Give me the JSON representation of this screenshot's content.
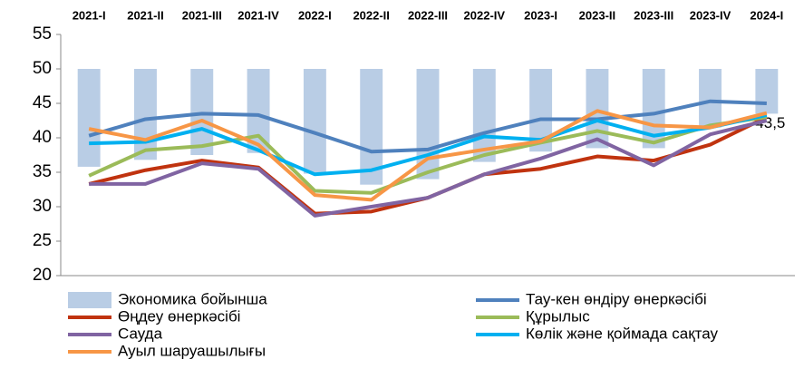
{
  "chart_data": {
    "type": "bar-line",
    "categories": [
      "2021-I",
      "2021-II",
      "2021-III",
      "2021-IV",
      "2022-I",
      "2022-II",
      "2022-III",
      "2022-IV",
      "2023-I",
      "2023-II",
      "2023-III",
      "2023-IV",
      "2024-I"
    ],
    "bar_base": 50,
    "series": [
      {
        "name": "Экономика бойынша",
        "kind": "bar",
        "color": "#b9cde5",
        "values": [
          35.8,
          36.8,
          37.5,
          37.8,
          34.8,
          33.2,
          34,
          36.5,
          38,
          38.5,
          38.5,
          41.5,
          43.5
        ],
        "value_labels": [
          null,
          null,
          null,
          null,
          null,
          null,
          null,
          null,
          null,
          null,
          null,
          null,
          "43,5"
        ]
      },
      {
        "name": "Тау-кен өндіру өнеркәсібі",
        "kind": "line",
        "color": "#4f81bd",
        "values": [
          40.3,
          42.7,
          43.5,
          43.3,
          40.7,
          38,
          38.3,
          40.7,
          42.7,
          42.7,
          43.5,
          45.3,
          45
        ]
      },
      {
        "name": "Өңдеу өнеркәсібі",
        "kind": "line",
        "color": "#c0330f",
        "values": [
          33.3,
          35.3,
          36.7,
          35.7,
          29,
          29.3,
          31.3,
          34.7,
          35.5,
          37.3,
          36.7,
          39,
          43
        ]
      },
      {
        "name": "Құрылыс",
        "kind": "line",
        "color": "#9bbb59",
        "values": [
          34.5,
          38.2,
          38.8,
          40.3,
          32.3,
          32,
          35,
          37.5,
          39.3,
          41,
          39.3,
          41.8,
          43
        ]
      },
      {
        "name": "Сауда",
        "kind": "line",
        "color": "#8064a2",
        "values": [
          33.3,
          33.3,
          36.3,
          35.5,
          28.7,
          30,
          31.3,
          34.7,
          37,
          39.8,
          36,
          40.5,
          42.5
        ]
      },
      {
        "name": "Көлік және қоймада сақтау",
        "kind": "line",
        "color": "#00b0f0",
        "values": [
          39.2,
          39.4,
          41.3,
          38.2,
          34.7,
          35.3,
          37.5,
          40.2,
          39.7,
          42.5,
          40.3,
          41.5,
          43.3
        ]
      },
      {
        "name": "Ауыл шаруашылығы",
        "kind": "line",
        "color": "#f79646",
        "values": [
          41.3,
          39.7,
          42.5,
          39,
          31.7,
          31,
          37,
          38.3,
          39.5,
          43.9,
          41.8,
          41.5,
          43.6
        ]
      }
    ],
    "ylim": [
      20,
      55
    ],
    "yticks": [
      20,
      25,
      30,
      35,
      40,
      45,
      50,
      55
    ]
  }
}
